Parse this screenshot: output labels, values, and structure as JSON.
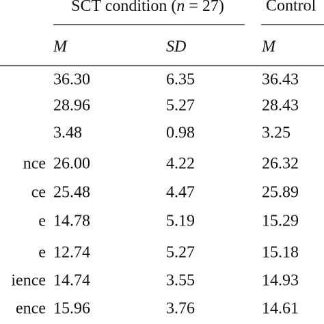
{
  "table": {
    "groups": [
      {
        "pre": "SCT condition (",
        "n": "n",
        "post": " = 27)"
      },
      {
        "pre": "Control"
      }
    ],
    "columns": [
      "M",
      "SD",
      "M"
    ],
    "rows": [
      {
        "cells": [
          "36.30",
          "6.35",
          "36.43"
        ]
      },
      {
        "cells": [
          "28.96",
          "5.27",
          "28.43"
        ]
      },
      {
        "cells": [
          "3.48",
          "0.98",
          "3.25"
        ]
      },
      {
        "label": "nce",
        "cells": [
          "26.00",
          "4.22",
          "26.32"
        ]
      },
      {
        "label": "ce",
        "cells": [
          "25.48",
          "4.47",
          "25.89"
        ]
      },
      {
        "label": "e",
        "cells": [
          "14.78",
          "5.19",
          "15.29"
        ]
      },
      {
        "label": "e",
        "cells": [
          "12.74",
          "5.27",
          "15.18"
        ]
      },
      {
        "label": "ience",
        "cells": [
          "14.74",
          "3.55",
          "14.93"
        ]
      },
      {
        "label": "ence",
        "cells": [
          "15.96",
          "3.76",
          "14.61"
        ]
      }
    ]
  }
}
